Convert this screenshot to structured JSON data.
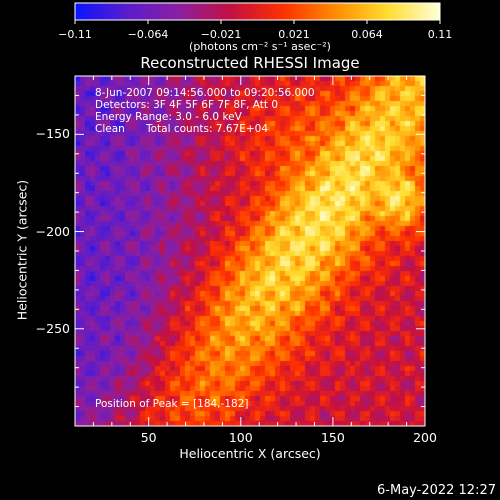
{
  "colorbar": {
    "tick_labels": [
      "-0.11",
      "-0.064",
      "-0.021",
      "0.021",
      "0.064",
      "0.11"
    ],
    "unit_label": "(photons cm⁻² s⁻¹ asec⁻²)",
    "range": [
      -0.11,
      0.11
    ],
    "stops": [
      "#0a14ff",
      "#5a1ccc",
      "#8c1fa0",
      "#c41040",
      "#ff3000",
      "#ff8c00",
      "#ffdd30",
      "#ffffd8"
    ]
  },
  "info": {
    "time_range": "8-Jun-2007 09:14:56.000 to 09:20:56.000",
    "detectors": "Detectors: 3F 4F 5F 6F 7F 8F, Att 0",
    "energy": "Energy Range: 3.0 - 6.0 keV",
    "algorithm": "Clean",
    "total_counts": "Total counts: 7.67E+04",
    "peak": "Position of Peak = [184,-182]"
  },
  "footer": {
    "timestamp": "6-May-2022 12:27"
  },
  "chart_data": {
    "type": "heatmap",
    "title": "Reconstructed RHESSI Image",
    "xlabel": "Heliocentric X (arcsec)",
    "ylabel": "Heliocentric Y (arcsec)",
    "xlim": [
      10,
      200
    ],
    "ylim": [
      -300,
      -120
    ],
    "x_ticks": [
      50,
      100,
      150,
      200
    ],
    "y_ticks": [
      -150,
      -200,
      -250
    ],
    "peak_position": [
      184,
      -182
    ],
    "value_range": [
      -0.11,
      0.11
    ]
  }
}
